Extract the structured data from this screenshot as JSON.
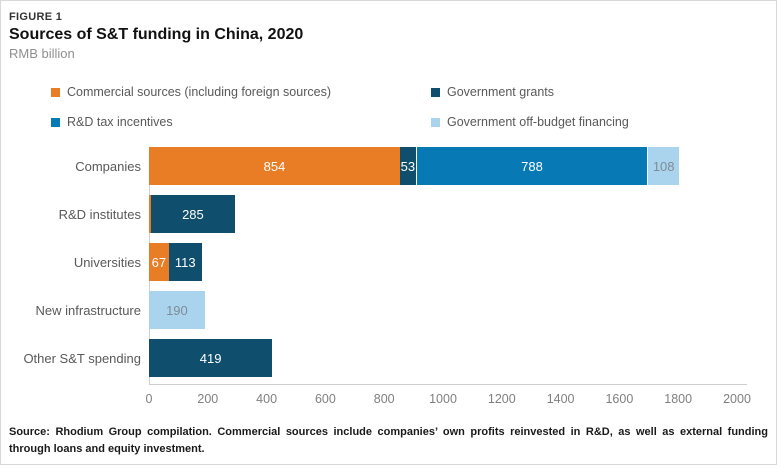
{
  "header": {
    "figure_label": "FIGURE 1",
    "title": "Sources of S&T funding in China, 2020",
    "unit": "RMB billion"
  },
  "source": "Source: Rhodium Group compilation. Commercial sources include companies’ own profits reinvested in R&D, as well as external funding through loans and equity investment.",
  "chart_data": {
    "type": "bar",
    "orientation": "horizontal",
    "stacked": true,
    "title": "Sources of S&T funding in China, 2020",
    "xlabel": "",
    "ylabel": "",
    "unit": "RMB billion",
    "xlim": [
      0,
      2000
    ],
    "x_ticks": [
      0,
      200,
      400,
      600,
      800,
      1000,
      1200,
      1400,
      1600,
      1800,
      2000
    ],
    "grid": false,
    "legend_position": "top",
    "label_min_value": 20,
    "legend": [
      {
        "name": "Commercial sources (including foreign sources)",
        "color": "#e87d26"
      },
      {
        "name": "Government grants",
        "color": "#104e6d"
      },
      {
        "name": "R&D tax incentives",
        "color": "#0779b4"
      },
      {
        "name": "Government off-budget financing",
        "color": "#aad4ee"
      }
    ],
    "categories": [
      "Companies",
      "R&D institutes",
      "Universities",
      "New infrastructure",
      "Other S&T spending"
    ],
    "series": [
      {
        "name": "Commercial sources (including foreign sources)",
        "color": "#e87d26",
        "label_color": "#ffffff",
        "values": [
          854,
          7,
          67,
          0,
          0
        ]
      },
      {
        "name": "Government grants",
        "color": "#104e6d",
        "label_color": "#ffffff",
        "values": [
          53,
          285,
          113,
          0,
          419
        ]
      },
      {
        "name": "R&D tax incentives",
        "color": "#0779b4",
        "label_color": "#ffffff",
        "values": [
          788,
          0,
          0,
          0,
          0
        ]
      },
      {
        "name": "Government off-budget financing",
        "color": "#aad4ee",
        "label_color": "#7e8c96",
        "values": [
          108,
          0,
          0,
          190,
          0
        ]
      }
    ],
    "axis_color": "#cfcfcf"
  }
}
